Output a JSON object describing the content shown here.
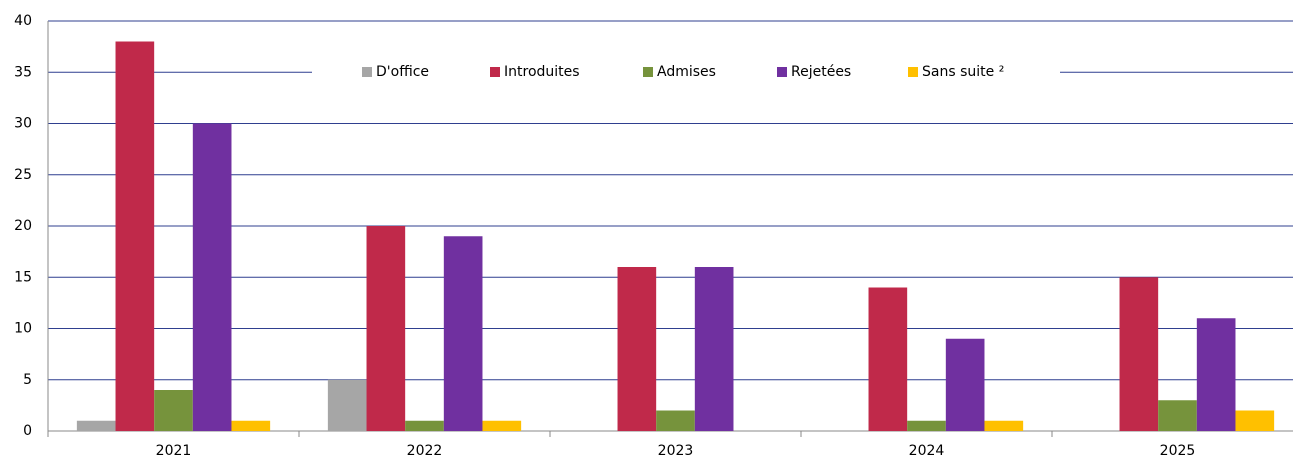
{
  "chart_data": {
    "type": "bar",
    "categories": [
      "2021",
      "2022",
      "2023",
      "2024",
      "2025"
    ],
    "series": [
      {
        "name": "D'office",
        "color": "#a6a6a6",
        "values": [
          1,
          5,
          0,
          0,
          0
        ]
      },
      {
        "name": "Introduites",
        "color": "#c0294a",
        "values": [
          38,
          20,
          16,
          14,
          15
        ]
      },
      {
        "name": "Admises",
        "color": "#76933c",
        "values": [
          4,
          1,
          2,
          1,
          3
        ]
      },
      {
        "name": "Rejetées",
        "color": "#7030a0",
        "values": [
          30,
          19,
          16,
          9,
          11
        ]
      },
      {
        "name": "Sans suite ²",
        "color": "#ffc000",
        "values": [
          1,
          1,
          0,
          1,
          2
        ]
      }
    ],
    "ylim": [
      0,
      40
    ],
    "yticks": [
      0,
      5,
      10,
      15,
      20,
      25,
      30,
      35,
      40
    ],
    "grid": true,
    "legend": "top"
  }
}
